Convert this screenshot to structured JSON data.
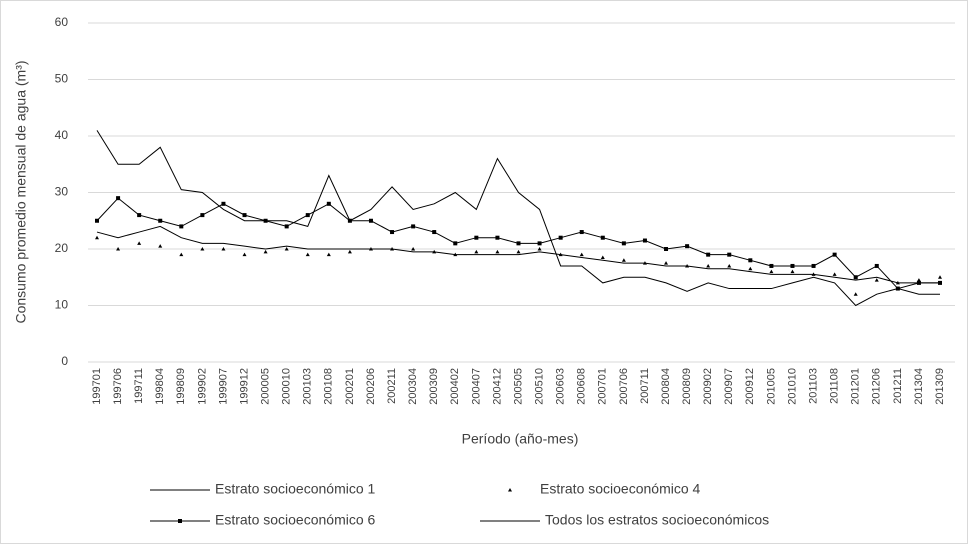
{
  "chart_data": {
    "type": "line",
    "y_label": "Consumo promedio mensual de agua  (m³)",
    "x_label": "Período (año-mes)",
    "categories": [
      "199701",
      "199706",
      "199711",
      "199804",
      "199809",
      "199902",
      "199907",
      "199912",
      "200005",
      "200010",
      "200103",
      "200108",
      "200201",
      "200206",
      "200211",
      "200304",
      "200309",
      "200402",
      "200407",
      "200412",
      "200505",
      "200510",
      "200603",
      "200608",
      "200701",
      "200706",
      "200711",
      "200804",
      "200809",
      "200902",
      "200907",
      "200912",
      "201005",
      "201010",
      "201103",
      "201108",
      "201201",
      "201206",
      "201211",
      "201304",
      "201309"
    ],
    "series": [
      {
        "name": "Estrato socioeconómico 1",
        "color": "#000000",
        "marker": "none",
        "values": [
          41,
          35,
          35,
          38,
          30.5,
          30,
          27,
          25,
          25,
          25,
          24,
          33,
          25,
          27,
          31,
          27,
          28,
          30,
          27,
          36,
          30,
          27,
          17,
          17,
          14,
          15,
          15,
          14,
          12.5,
          14,
          13,
          13,
          13,
          14,
          15,
          14,
          10,
          12,
          13,
          12,
          12
        ]
      },
      {
        "name": "Estrato socioeconómico 4",
        "color": "#000000",
        "marker": "triangle",
        "values": [
          22,
          20,
          21,
          20.5,
          19,
          20,
          20,
          19,
          19.5,
          20,
          19,
          19,
          19.5,
          20,
          20,
          20,
          19.5,
          19,
          19.5,
          19.5,
          19.5,
          20,
          19,
          19,
          18.5,
          18,
          17.5,
          17.5,
          17,
          17,
          17,
          16.5,
          16,
          16,
          15.5,
          15.5,
          12,
          14.5,
          14,
          14.5,
          15
        ]
      },
      {
        "name": "Estrato socioeconómico 6",
        "color": "#000000",
        "marker": "square",
        "values": [
          25,
          29,
          26,
          25,
          24,
          26,
          28,
          26,
          25,
          24,
          26,
          28,
          25,
          25,
          23,
          24,
          23,
          21,
          22,
          22,
          21,
          21,
          22,
          23,
          22,
          21,
          21.5,
          20,
          20.5,
          19,
          19,
          18,
          17,
          17,
          17,
          19,
          15,
          17,
          13,
          14,
          14
        ]
      },
      {
        "name": "Todos los estratos socioeconómicos",
        "color": "#000000",
        "marker": "none",
        "values": [
          23,
          22,
          23,
          24,
          22,
          21,
          21,
          20.5,
          20,
          20.5,
          20,
          20,
          20,
          20,
          20,
          19.5,
          19.5,
          19,
          19,
          19,
          19,
          19.5,
          19,
          18.5,
          18,
          17.5,
          17.5,
          17,
          17,
          16.5,
          16.5,
          16,
          15.5,
          15.5,
          15.5,
          15,
          14.5,
          15,
          14,
          14,
          14
        ]
      }
    ],
    "ylim": [
      0,
      60
    ],
    "yticks": [
      0,
      10,
      20,
      30,
      40,
      50,
      60
    ],
    "grid": true
  }
}
